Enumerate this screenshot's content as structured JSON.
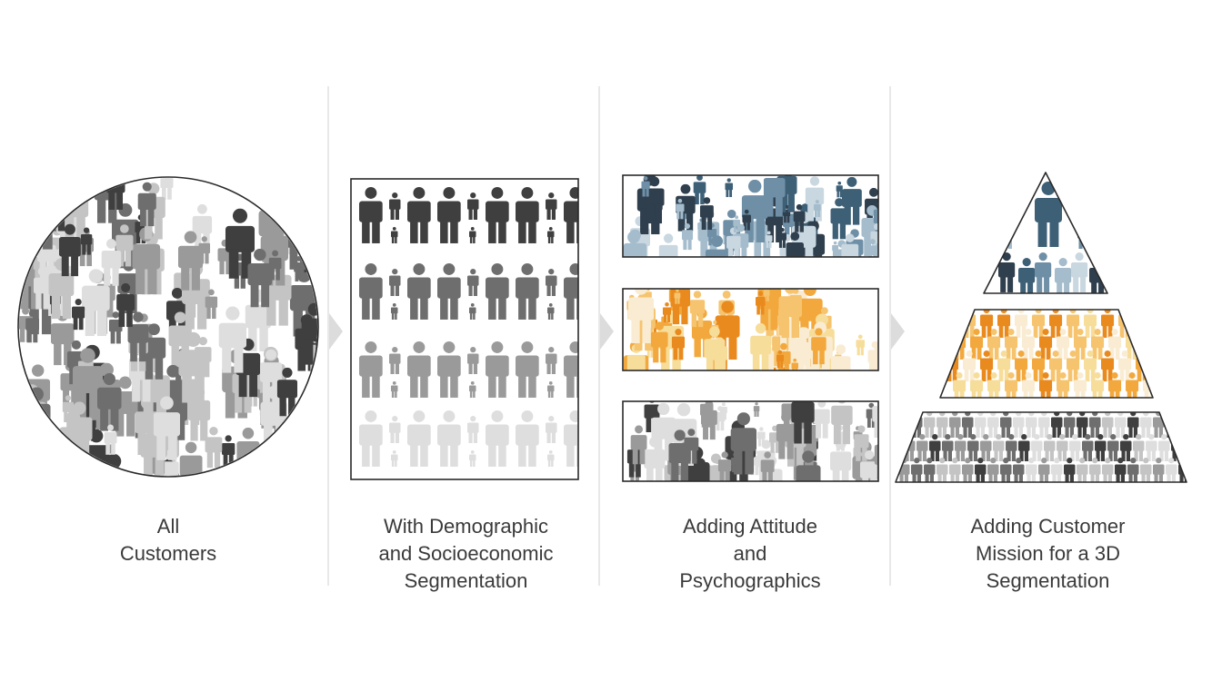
{
  "captions": [
    [
      "All",
      "Customers"
    ],
    [
      "With Demographic",
      "and Socioeconomic",
      "Segmentation"
    ],
    [
      "Adding Attitude",
      "and",
      "Psychographics"
    ],
    [
      "Adding Customer",
      "Mission for a 3D",
      "Segmentation"
    ]
  ],
  "colors": {
    "grays": [
      "#3f3f3f",
      "#6e6e6e",
      "#9a9a9a",
      "#c4c4c4",
      "#dedede"
    ],
    "blue_segment": [
      "#2f3f4d",
      "#3e6077",
      "#6f8fa6",
      "#a4bccc",
      "#c9d7e1"
    ],
    "orange_segment": [
      "#e98a1e",
      "#f2a83c",
      "#f6c46e",
      "#f7dd9a",
      "#f9ecd3"
    ],
    "gray_segment": [
      "#3f3f3f",
      "#6e6e6e",
      "#9a9a9a",
      "#c4c4c4",
      "#dedede"
    ],
    "divider": "#d0d0d0",
    "arrow": "#dcdcdc",
    "outline": "#2a2a2a"
  },
  "icons": [
    "person-icon",
    "chevron-right-icon"
  ]
}
